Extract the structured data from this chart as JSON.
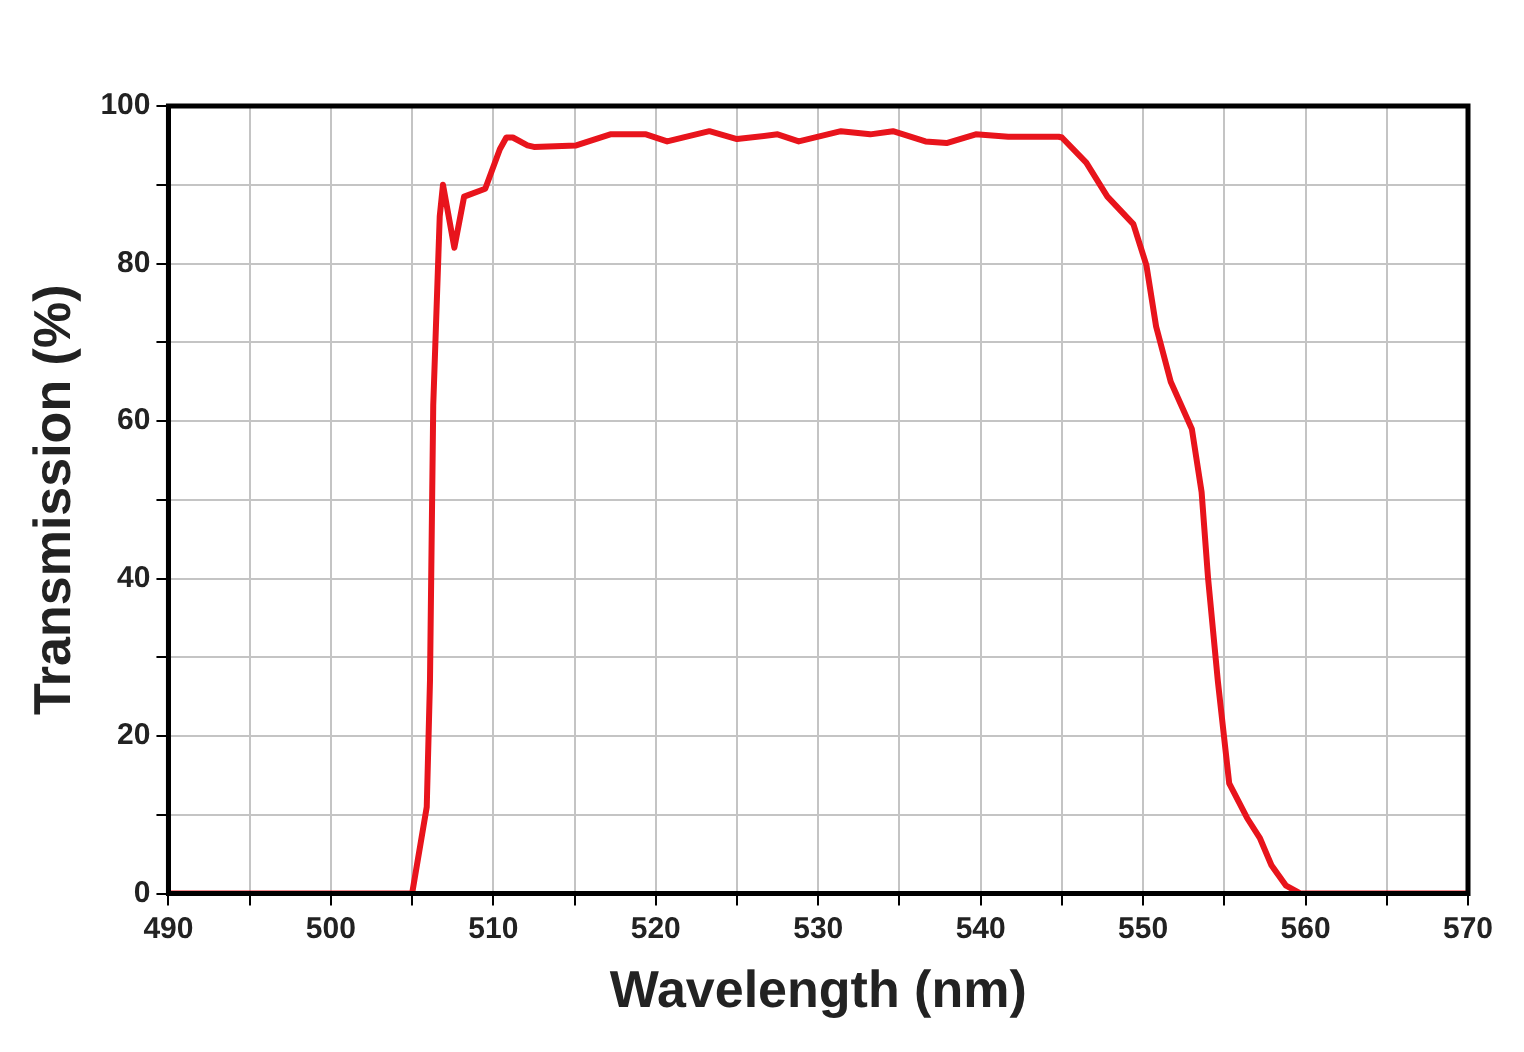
{
  "chart_data": {
    "type": "line",
    "xlabel": "Wavelength (nm)",
    "ylabel": "Transmission (%)",
    "xlim": [
      490,
      570
    ],
    "ylim": [
      0,
      100
    ],
    "xticks": [
      490,
      {
        "value": 495,
        "label": null
      },
      500,
      {
        "value": 505,
        "label": null
      },
      510,
      {
        "value": 515,
        "label": null
      },
      520,
      {
        "value": 525,
        "label": null
      },
      530,
      {
        "value": 535,
        "label": null
      },
      540,
      {
        "value": 545,
        "label": null
      },
      550,
      {
        "value": 555,
        "label": null
      },
      560,
      {
        "value": 565,
        "label": null
      },
      570
    ],
    "yticks": [
      0,
      {
        "value": 10,
        "label": null
      },
      20,
      {
        "value": 30,
        "label": null
      },
      40,
      {
        "value": 50,
        "label": null
      },
      60,
      {
        "value": 70,
        "label": null
      },
      80,
      {
        "value": 90,
        "label": null
      },
      100
    ],
    "grid": true,
    "legend": false,
    "marker": "none",
    "line_style": "solid",
    "series": [
      {
        "color": "#e8141c",
        "x": [
          490,
          505,
          505.9,
          506.1,
          506.3,
          506.7,
          506.9,
          507.6,
          508.2,
          509.5,
          510.4,
          510.8,
          511.2,
          512.1,
          512.5,
          515.1,
          517.2,
          519.4,
          520.7,
          523.3,
          525,
          527.5,
          528.8,
          531.4,
          533.2,
          534.6,
          536.6,
          537.9,
          539.7,
          541.7,
          544.8,
          545,
          546.5,
          547.8,
          549.4,
          550.2,
          550.8,
          551.7,
          553,
          553.6,
          554,
          554.6,
          555.3,
          556.4,
          557.2,
          557.9,
          558.8,
          559.7,
          570
        ],
        "values": [
          0,
          0,
          11,
          27,
          62,
          86,
          90,
          82,
          88.5,
          89.5,
          94.5,
          96,
          96,
          95,
          94.8,
          95,
          96.4,
          96.4,
          95.5,
          96.8,
          95.8,
          96.4,
          95.5,
          96.8,
          96.4,
          96.8,
          95.5,
          95.3,
          96.4,
          96.1,
          96.1,
          96,
          92.8,
          88.5,
          85,
          79.8,
          72,
          65,
          59,
          51,
          40,
          27,
          14,
          9.6,
          7,
          3.6,
          1,
          0,
          0
        ]
      }
    ]
  }
}
